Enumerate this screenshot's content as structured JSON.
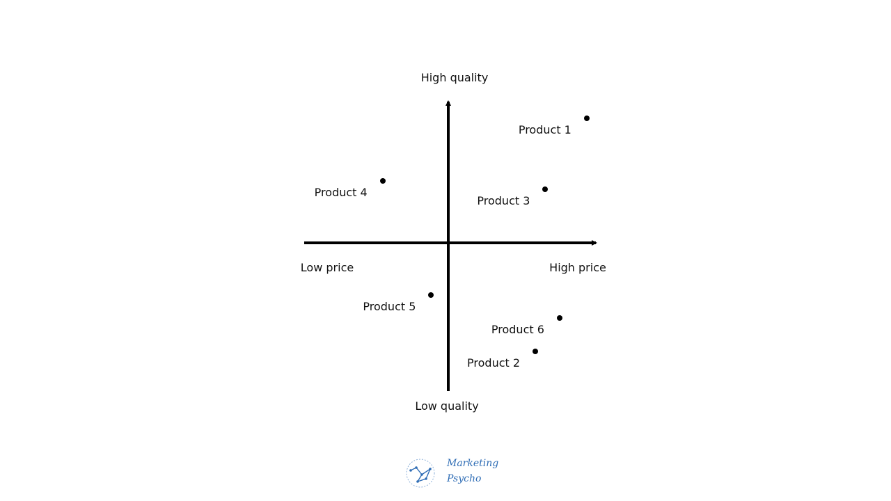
{
  "diagram": {
    "axes": {
      "top": "High quality",
      "bottom": "Low quality",
      "left": "Low price",
      "right": "High price"
    },
    "products": [
      {
        "label": "Product 1",
        "price": 0.97,
        "quality": 0.88
      },
      {
        "label": "Product 2",
        "price": 0.61,
        "quality": -0.77
      },
      {
        "label": "Product 3",
        "price": 0.68,
        "quality": 0.38
      },
      {
        "label": "Product 4",
        "price": -0.46,
        "quality": 0.44
      },
      {
        "label": "Product 5",
        "price": -0.12,
        "quality": -0.37
      },
      {
        "label": "Product 6",
        "price": 0.78,
        "quality": -0.53
      }
    ]
  },
  "logo": {
    "line1": "Marketing",
    "line2": "Psycho",
    "accent_color": "#2f6db5",
    "icon": "constellation-globe-icon"
  }
}
